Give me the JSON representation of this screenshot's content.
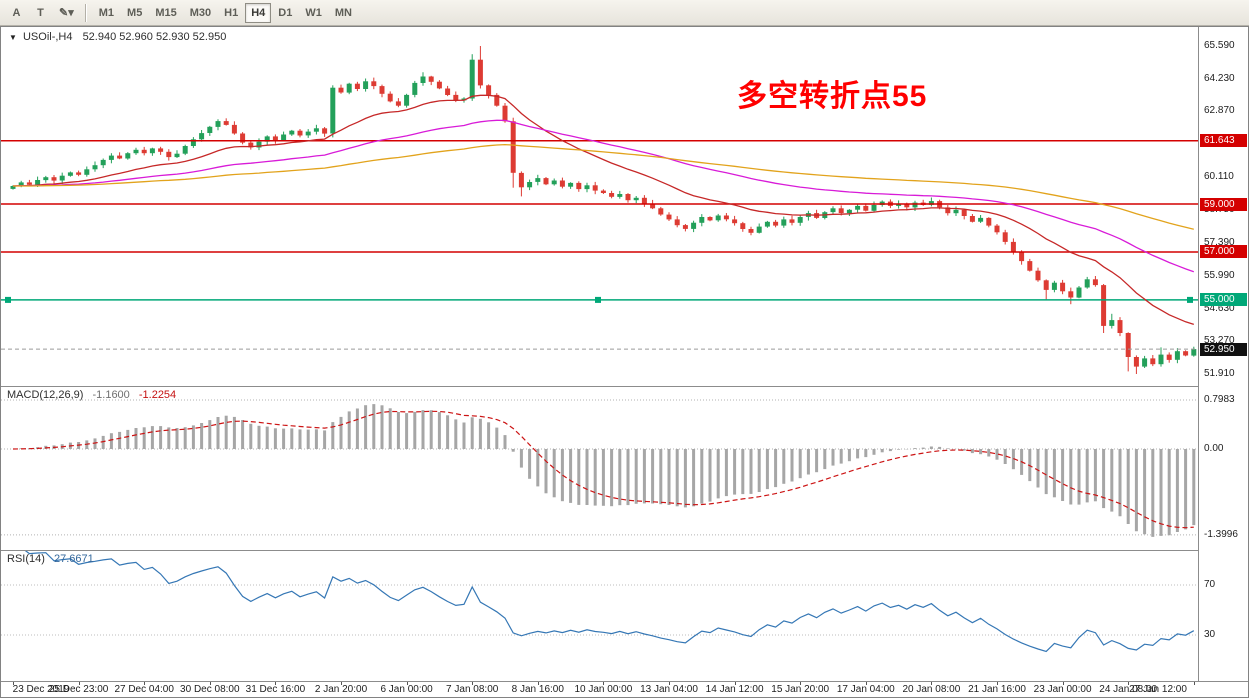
{
  "toolbar": {
    "tool_buttons": [
      {
        "name": "pointer-tool",
        "label": "A"
      },
      {
        "name": "text-tool",
        "label": "T"
      },
      {
        "name": "draw-tool",
        "icon": "pencil-icon",
        "caret": true
      }
    ],
    "timeframes": [
      {
        "label": "M1",
        "active": false
      },
      {
        "label": "M5",
        "active": false
      },
      {
        "label": "M15",
        "active": false
      },
      {
        "label": "M30",
        "active": false
      },
      {
        "label": "H1",
        "active": false
      },
      {
        "label": "H4",
        "active": true
      },
      {
        "label": "D1",
        "active": false
      },
      {
        "label": "W1",
        "active": false
      },
      {
        "label": "MN",
        "active": false
      }
    ]
  },
  "chart": {
    "symbol_title": "USOil-,H4",
    "ohlc_text": "52.940 52.960 52.930 52.950",
    "annotation": "多空转折点55",
    "current_price_label": "52.950"
  },
  "indicators": {
    "macd": {
      "label": "MACD(12,26,9)",
      "value_main": "-1.1600",
      "value_signal": "-1.2254"
    },
    "rsi": {
      "label": "RSI(14)",
      "value": "27.6671"
    }
  },
  "price_scale": {
    "plain": [
      {
        "v": 65.59,
        "t": "65.590"
      },
      {
        "v": 64.23,
        "t": "64.230"
      },
      {
        "v": 62.87,
        "t": "62.870"
      },
      {
        "v": 60.11,
        "t": "60.110"
      },
      {
        "v": 58.75,
        "t": "58.750"
      },
      {
        "v": 57.39,
        "t": "57.390"
      },
      {
        "v": 55.99,
        "t": "55.990"
      },
      {
        "v": 54.63,
        "t": "54.630"
      },
      {
        "v": 53.27,
        "t": "53.270"
      },
      {
        "v": 51.91,
        "t": "51.910"
      }
    ],
    "badges": [
      {
        "v": 61.643,
        "t": "61.643",
        "bg": "#d40000"
      },
      {
        "v": 59.0,
        "t": "59.000",
        "bg": "#d40000"
      },
      {
        "v": 57.0,
        "t": "57.000",
        "bg": "#d40000"
      },
      {
        "v": 55.0,
        "t": "55.000",
        "bg": "#00a878"
      },
      {
        "v": 52.95,
        "t": "52.950",
        "bg": "#111111"
      }
    ],
    "macd_scale": [
      {
        "v": 0.7983,
        "t": "0.7983"
      },
      {
        "v": 0.0,
        "t": "0.00"
      },
      {
        "v": -1.3996,
        "t": "-1.3996"
      }
    ],
    "rsi_scale": [
      {
        "v": 70,
        "t": "70"
      },
      {
        "v": 30,
        "t": "30"
      }
    ]
  },
  "time_axis": {
    "labels": [
      "23 Dec 2019",
      "25 Dec 23:00",
      "27 Dec 04:00",
      "30 Dec 08:00",
      "31 Dec 16:00",
      "2 Jan 20:00",
      "6 Jan 00:00",
      "7 Jan 08:00",
      "8 Jan 16:00",
      "10 Jan 00:00",
      "13 Jan 04:00",
      "14 Jan 12:00",
      "15 Jan 20:00",
      "17 Jan 04:00",
      "20 Jan 08:00",
      "21 Jan 16:00",
      "23 Jan 00:00",
      "24 Jan 08:00",
      "27 Jan 12:00"
    ]
  },
  "chart_data": {
    "type": "candlestick",
    "symbol": "USOil-",
    "timeframe": "H4",
    "x_label_every": 8,
    "axes": {
      "main": {
        "min": 51.41,
        "max": 66.3
      },
      "macd": {
        "min": -1.645,
        "max": 1.01,
        "grid": [
          0.7983,
          0.0,
          -1.3996
        ]
      },
      "rsi": {
        "min": -6.8,
        "max": 97.2,
        "grid": [
          70,
          30
        ]
      }
    },
    "up_color": "#23a05a",
    "down_color": "#dd3b33",
    "closes": [
      59.75,
      59.9,
      59.8,
      60.0,
      60.12,
      59.98,
      60.18,
      60.32,
      60.22,
      60.45,
      60.62,
      60.84,
      61.02,
      60.9,
      61.12,
      61.26,
      61.12,
      61.32,
      61.18,
      60.96,
      61.1,
      61.42,
      61.7,
      61.96,
      62.22,
      62.46,
      62.3,
      61.94,
      61.56,
      61.36,
      61.6,
      61.82,
      61.66,
      61.9,
      62.06,
      61.86,
      62.02,
      62.16,
      61.94,
      63.85,
      63.65,
      64.02,
      63.8,
      64.12,
      63.92,
      63.6,
      63.28,
      63.1,
      63.55,
      64.05,
      64.32,
      64.1,
      63.82,
      63.55,
      63.32,
      63.4,
      65.02,
      63.95,
      63.55,
      63.1,
      62.45,
      60.3,
      59.7,
      59.92,
      60.08,
      59.82,
      59.98,
      59.72,
      59.88,
      59.62,
      59.78,
      59.56,
      59.46,
      59.3,
      59.42,
      59.16,
      59.26,
      59.02,
      58.82,
      58.56,
      58.36,
      58.12,
      57.96,
      58.22,
      58.46,
      58.32,
      58.52,
      58.36,
      58.2,
      57.96,
      57.8,
      58.06,
      58.26,
      58.1,
      58.36,
      58.22,
      58.46,
      58.62,
      58.42,
      58.66,
      58.82,
      58.62,
      58.76,
      58.92,
      58.72,
      58.96,
      59.1,
      58.92,
      59.02,
      58.86,
      59.06,
      58.96,
      59.12,
      58.86,
      58.62,
      58.76,
      58.5,
      58.26,
      58.42,
      58.1,
      57.82,
      57.42,
      57.02,
      56.62,
      56.22,
      55.82,
      55.42,
      55.72,
      55.36,
      55.1,
      55.52,
      55.86,
      55.62,
      53.92,
      54.16,
      53.62,
      52.62,
      52.22,
      52.56,
      52.32,
      52.72,
      52.5,
      52.86,
      52.68,
      52.95
    ],
    "candle_overrides": {
      "39": {
        "h": 63.95,
        "l": 61.78
      },
      "50": {
        "h": 64.5
      },
      "56": {
        "h": 65.25,
        "l": 63.3
      },
      "57": {
        "h": 65.59
      },
      "61": {
        "l": 59.68
      },
      "62": {
        "l": 59.32
      },
      "82": {
        "l": 57.86
      },
      "90": {
        "l": 57.7
      },
      "126": {
        "l": 55.02
      },
      "129": {
        "l": 54.82
      },
      "131": {
        "h": 55.96
      },
      "133": {
        "l": 53.62
      },
      "134": {
        "h": 54.42
      },
      "136": {
        "l": 52.02
      },
      "137": {
        "l": 51.91
      },
      "140": {
        "h": 53.02
      },
      "144": {
        "h": 53.05
      }
    },
    "levels": [
      {
        "value": 61.643,
        "color": "#d40000",
        "handles": false
      },
      {
        "value": 59.0,
        "color": "#d40000",
        "handles": false
      },
      {
        "value": 57.0,
        "color": "#d40000",
        "handles": false
      },
      {
        "value": 55.0,
        "color": "#00a878",
        "handles": true
      }
    ],
    "current_price": 52.95,
    "moving_averages": [
      {
        "period": 20,
        "color": "#c62828"
      },
      {
        "period": 55,
        "color": "#d81bd8"
      },
      {
        "period": 120,
        "color": "#e2a31c"
      }
    ],
    "macd": {
      "fast": 12,
      "slow": 26,
      "signal": 9,
      "histogram_color": "#a6a6a6",
      "signal_color": "#cc1414"
    },
    "rsi": {
      "period": 14,
      "color": "#3577b5",
      "levels": [
        70,
        30
      ]
    }
  }
}
